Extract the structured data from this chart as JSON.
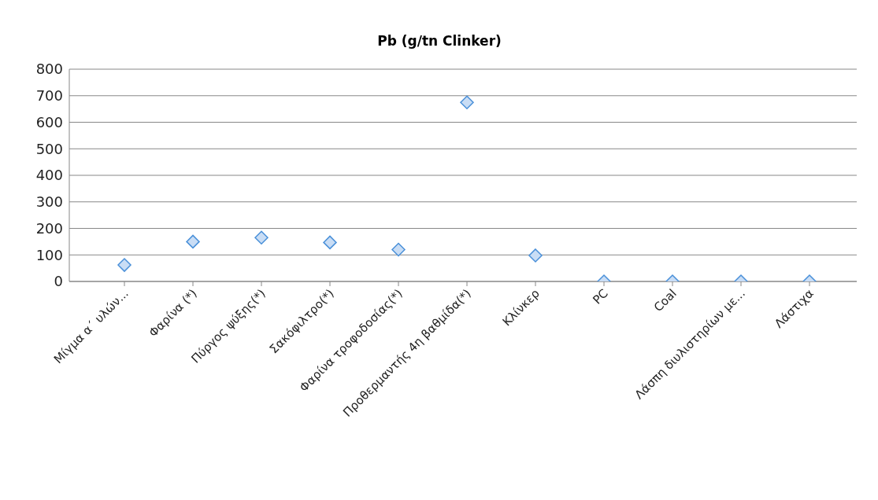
{
  "chart_data": {
    "type": "scatter",
    "title": "Pb (g/tn Clinker)",
    "categories": [
      "Μίγμα α΄ υλών...",
      "Φαρίνα (*)",
      "Πύργος ψύξης(*)",
      "Σακόφιλτρο(*)",
      "Φαρίνα τροφοδοσίας(*)",
      "Προθερμαντής 4η βαθμίδα(*)",
      "Κλίνκερ",
      "PC",
      "Coal",
      "Λάσπη διυλιστηρίων με...",
      "Λάστιχα"
    ],
    "values": [
      62,
      150,
      165,
      147,
      120,
      675,
      98,
      0,
      0,
      0,
      0
    ],
    "color": "#4a90d9",
    "marker": "diamond",
    "ylim": [
      0,
      800
    ],
    "yticks": [
      0,
      100,
      200,
      300,
      400,
      500,
      600,
      700,
      800
    ],
    "grid": "y"
  }
}
